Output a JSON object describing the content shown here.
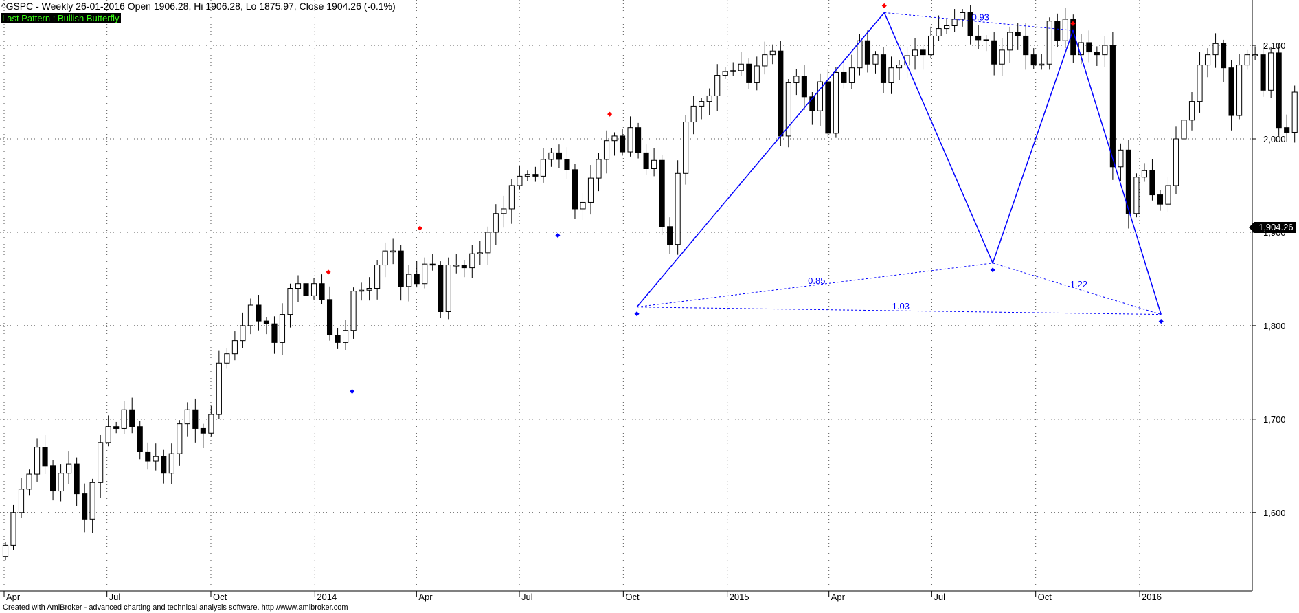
{
  "header": {
    "title": "^GSPC - Weekly 26-01-2016 Open 1906.28, Hi 1906.28, Lo 1875.97, Close 1904.26 (-0.1%)",
    "pattern_label": "Last Pattern : Bullish Butterfly"
  },
  "footer": {
    "text": "Created with AmiBroker - advanced charting and technical analysis software. http://www.amibroker.com"
  },
  "colors": {
    "pattern_line": "#0000ff",
    "bull_candle": "#ffffff",
    "bear_candle": "#000000",
    "pivot_high": "#ff0000",
    "pivot_low": "#0000ff",
    "label_text": "#39ff14"
  },
  "chart_data": {
    "type": "candlestick",
    "title": "",
    "xlabel": "",
    "ylabel": "",
    "y_ticks": [
      "1,600",
      "1,700",
      "1,800",
      "1,900",
      "2,000",
      "2,100"
    ],
    "ylim": [
      1520,
      2150
    ],
    "grid": true,
    "last_close_label": "1,904.26",
    "x_ticks": [
      {
        "label": "Apr",
        "date": "2013-04-01"
      },
      {
        "label": "Jul",
        "date": "2013-07-01"
      },
      {
        "label": "Oct",
        "date": "2013-10-01"
      },
      {
        "label": "2014",
        "date": "2014-01-01"
      },
      {
        "label": "Apr",
        "date": "2014-04-01"
      },
      {
        "label": "Jul",
        "date": "2014-07-01"
      },
      {
        "label": "Oct",
        "date": "2014-10-01"
      },
      {
        "label": "2015",
        "date": "2015-01-01"
      },
      {
        "label": "Apr",
        "date": "2015-04-01"
      },
      {
        "label": "Jul",
        "date": "2015-07-01"
      },
      {
        "label": "Oct",
        "date": "2015-10-01"
      },
      {
        "label": "2016",
        "date": "2016-01-01"
      }
    ],
    "closes": [
      1565,
      1600,
      1625,
      1641,
      1670,
      1650,
      1623,
      1642,
      1652,
      1620,
      1593,
      1632,
      1675,
      1692,
      1690,
      1710,
      1692,
      1665,
      1655,
      1660,
      1642,
      1663,
      1695,
      1710,
      1690,
      1685,
      1705,
      1760,
      1770,
      1784,
      1800,
      1822,
      1805,
      1802,
      1782,
      1812,
      1840,
      1845,
      1832,
      1845,
      1828,
      1790,
      1782,
      1795,
      1837,
      1838,
      1840,
      1865,
      1880,
      1880,
      1842,
      1855,
      1845,
      1866,
      1865,
      1815,
      1865,
      1865,
      1862,
      1877,
      1878,
      1900,
      1920,
      1925,
      1950,
      1960,
      1962,
      1960,
      1978,
      1985,
      1978,
      1967,
      1925,
      1932,
      1958,
      1978,
      1998,
      2003,
      1986,
      2012,
      1985,
      1968,
      1977,
      1906,
      1887,
      1963,
      2018,
      2035,
      2040,
      2046,
      2068,
      2072,
      2073,
      2080,
      2060,
      2078,
      2090,
      2094,
      2003,
      2060,
      2067,
      2045,
      2030,
      2061,
      2006,
      2071,
      2060,
      2076,
      2105,
      2080,
      2090,
      2060,
      2076,
      2079,
      2089,
      2095,
      2090,
      2110,
      2118,
      2121,
      2128,
      2135,
      2110,
      2106,
      2105,
      2080,
      2095,
      2114,
      2110,
      2090,
      2079,
      2080,
      2126,
      2105,
      2128,
      2090,
      2103,
      2093,
      2090,
      2100,
      1970,
      1988,
      1920,
      1959,
      1966,
      1940,
      1930,
      1950,
      2000,
      2020,
      2040,
      2079,
      2090,
      2102,
      2076,
      2025,
      2079,
      2090,
      2090,
      2052,
      2092,
      2012,
      2007,
      2050,
      2045,
      2040,
      1970,
      1920,
      1880,
      1906,
      1904
    ],
    "pivots": [
      {
        "type": "high",
        "date": "2014-01-13",
        "value": 1850
      },
      {
        "type": "low",
        "date": "2014-02-03",
        "value": 1737
      },
      {
        "type": "high",
        "date": "2014-04-04",
        "value": 1897
      },
      {
        "type": "low",
        "date": "2014-08-04",
        "value": 1904
      },
      {
        "type": "high",
        "date": "2014-09-19",
        "value": 2019
      },
      {
        "type": "low",
        "date": "2014-10-13",
        "value": 1820
      },
      {
        "type": "high",
        "date": "2015-05-20",
        "value": 2135
      },
      {
        "type": "low",
        "date": "2015-08-24",
        "value": 1867
      },
      {
        "type": "high",
        "date": "2015-11-03",
        "value": 2116
      },
      {
        "type": "low",
        "date": "2016-01-20",
        "value": 1812
      }
    ],
    "pattern": {
      "name": "Bullish Butterfly",
      "points": [
        {
          "date": "2014-10-13",
          "value": 1820
        },
        {
          "date": "2015-05-20",
          "value": 2135
        },
        {
          "date": "2015-08-24",
          "value": 1867
        },
        {
          "date": "2015-11-03",
          "value": 2116
        },
        {
          "date": "2016-01-20",
          "value": 1812
        }
      ],
      "ratios": [
        {
          "label": "0.93",
          "from": 1,
          "to": 3
        },
        {
          "label": "0.85",
          "from": 0,
          "to": 2
        },
        {
          "label": "1.22",
          "from": 2,
          "to": 4
        },
        {
          "label": "1.03",
          "from": 0,
          "to": 4
        }
      ]
    }
  }
}
